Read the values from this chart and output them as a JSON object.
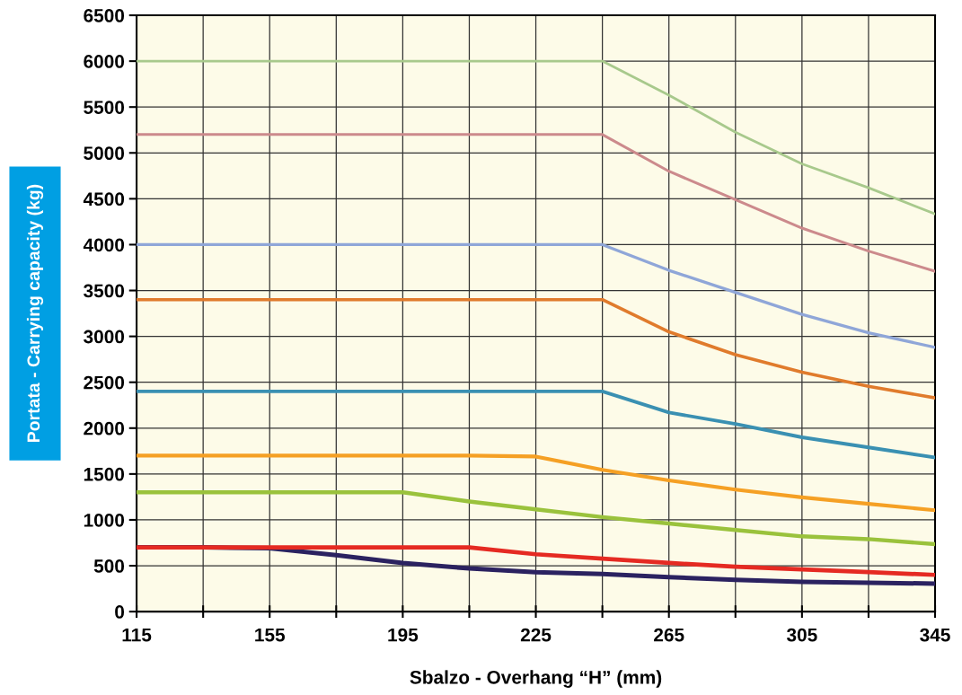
{
  "chart_data": {
    "type": "line",
    "xlabel": "Sbalzo - Overhang “H” (mm)",
    "ylabel": "Portata - Carrying capacity (kg)",
    "categories": [
      "115",
      null,
      "155",
      null,
      "195",
      null,
      "225",
      null,
      "265",
      null,
      "305",
      null,
      "345"
    ],
    "ylim": [
      0,
      6500
    ],
    "yticks": [
      0,
      500,
      1000,
      1500,
      2000,
      2500,
      3000,
      3500,
      4000,
      4500,
      5000,
      5500,
      6000,
      6500
    ],
    "grid": true,
    "legend": false,
    "marker": "none",
    "line_style": "solid",
    "series": [
      {
        "color": "#a8c98c",
        "values": [
          6000,
          6000,
          6000,
          6000,
          6000,
          6000,
          6000,
          6000,
          5630,
          5225,
          4880,
          4620,
          4335
        ]
      },
      {
        "color": "#cc8a8c",
        "values": [
          5200,
          5200,
          5200,
          5200,
          5200,
          5200,
          5200,
          5200,
          4800,
          4490,
          4180,
          3930,
          3710
        ]
      },
      {
        "color": "#8fa6d8",
        "values": [
          4000,
          4000,
          4000,
          4000,
          4000,
          4000,
          4000,
          4000,
          3720,
          3480,
          3240,
          3040,
          2880
        ]
      },
      {
        "color": "#e07b2c",
        "values": [
          3400,
          3400,
          3400,
          3400,
          3400,
          3400,
          3400,
          3400,
          3050,
          2800,
          2610,
          2455,
          2330
        ]
      },
      {
        "color": "#3a90b2",
        "values": [
          2400,
          2400,
          2400,
          2400,
          2400,
          2400,
          2400,
          2400,
          2170,
          2045,
          1900,
          1790,
          1680
        ]
      },
      {
        "color": "#f5a024",
        "values": [
          1700,
          1700,
          1700,
          1700,
          1700,
          1700,
          1690,
          1545,
          1430,
          1330,
          1245,
          1175,
          1105
        ]
      },
      {
        "color": "#9ac23c",
        "values": [
          1300,
          1300,
          1300,
          1300,
          1300,
          1200,
          1115,
          1030,
          960,
          890,
          820,
          790,
          735
        ]
      },
      {
        "color": "#e52a22",
        "values": [
          700,
          700,
          700,
          700,
          700,
          700,
          625,
          577,
          530,
          490,
          460,
          430,
          400
        ]
      },
      {
        "color": "#2b2260",
        "values": [
          700,
          700,
          690,
          615,
          530,
          470,
          430,
          410,
          375,
          345,
          325,
          315,
          305
        ]
      }
    ]
  }
}
